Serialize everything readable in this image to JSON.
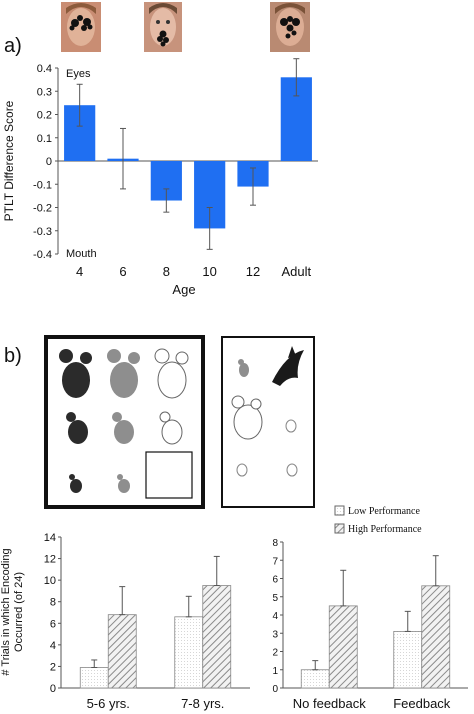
{
  "panel_a": {
    "label": "a)",
    "ylabel": "PTLT Difference Score",
    "xlabel": "Age",
    "eyes_label": "Eyes",
    "mouth_label": "Mouth"
  },
  "panel_b": {
    "label": "b)",
    "legend": {
      "low": "Low Performance",
      "high": "High Performance"
    },
    "ylabel_line1": "# Trials in which Encoding",
    "ylabel_line2": "Occurred (of 24)"
  },
  "chart_data": [
    {
      "type": "bar",
      "title": "",
      "xlabel": "Age",
      "ylabel": "PTLT Difference Score",
      "categories": [
        "4",
        "6",
        "8",
        "10",
        "12",
        "Adult"
      ],
      "values": [
        0.24,
        0.01,
        -0.17,
        -0.29,
        -0.11,
        0.36
      ],
      "error": [
        0.09,
        0.13,
        0.05,
        0.09,
        0.08,
        0.08
      ],
      "ylim": [
        -0.4,
        0.4
      ],
      "yticks": [
        "0.4",
        "0.3",
        "0.2",
        "0.1",
        "0",
        "-0.1",
        "-0.2",
        "-0.3",
        "-0.4"
      ],
      "color": "#1f6ff2",
      "grid": false
    },
    {
      "type": "bar",
      "categories": [
        "5-6 yrs.",
        "7-8 yrs."
      ],
      "series": [
        {
          "name": "Low Performance",
          "values": [
            1.9,
            6.6
          ],
          "error": [
            0.7,
            1.9
          ]
        },
        {
          "name": "High Performance",
          "values": [
            6.8,
            9.5
          ],
          "error": [
            2.6,
            2.7
          ]
        }
      ],
      "ylim": [
        0,
        14
      ],
      "yticks": [
        "14",
        "12",
        "10",
        "8",
        "6",
        "4",
        "2",
        "0"
      ],
      "ylabel": "# Trials in which Encoding Occurred (of 24)",
      "grid": false
    },
    {
      "type": "bar",
      "categories": [
        "No feedback",
        "Feedback"
      ],
      "series": [
        {
          "name": "Low Performance",
          "values": [
            1.0,
            3.1
          ],
          "error": [
            0.5,
            1.1
          ]
        },
        {
          "name": "High Performance",
          "values": [
            4.5,
            5.6
          ],
          "error": [
            1.95,
            1.65
          ]
        }
      ],
      "ylim": [
        0,
        8
      ],
      "yticks": [
        "8",
        "7",
        "6",
        "5",
        "4",
        "3",
        "2",
        "1",
        "0"
      ],
      "grid": false,
      "legend": "top-right"
    }
  ]
}
